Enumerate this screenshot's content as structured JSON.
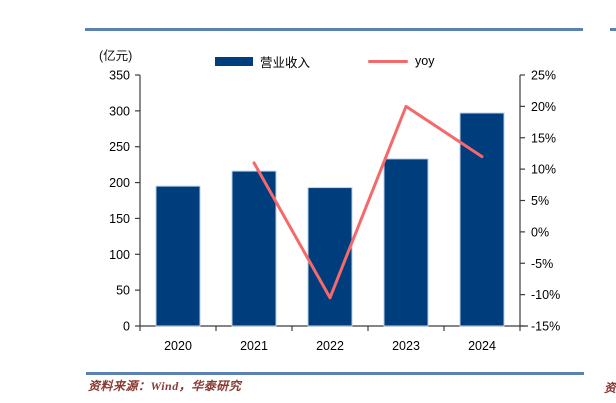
{
  "page": {
    "unit_label": "(亿元)",
    "source_text": "资料来源：Wind，华泰研究",
    "source_fragment": "资"
  },
  "legend": {
    "revenue_label": "营业收入",
    "yoy_label": "yoy"
  },
  "colors": {
    "bar": "#003D7C",
    "bar_stroke": "#BDD0E7",
    "line": "#F5696B",
    "rule": "#5B80B2",
    "source_text": "#8B3A32",
    "axis": "#3C3C3C",
    "tick_label": "#000000"
  },
  "chart_data": {
    "type": "bar",
    "title": "",
    "categories": [
      "2020",
      "2021",
      "2022",
      "2023",
      "2024"
    ],
    "series": [
      {
        "name": "营业收入",
        "type": "bar",
        "axis": "left",
        "unit": "亿元",
        "values": [
          195,
          216,
          193,
          233,
          297
        ]
      },
      {
        "name": "yoy",
        "type": "line",
        "axis": "right",
        "unit": "%",
        "values": [
          null,
          11,
          -10.5,
          20,
          12
        ]
      }
    ],
    "left_axis": {
      "min": 0,
      "max": 350,
      "step": 50,
      "labels": [
        "0",
        "50",
        "100",
        "150",
        "200",
        "250",
        "300",
        "350"
      ]
    },
    "right_axis": {
      "min": -15,
      "max": 25,
      "step": 5,
      "labels": [
        "-15%",
        "-10%",
        "-5%",
        "0%",
        "5%",
        "10%",
        "15%",
        "20%",
        "25%"
      ]
    },
    "xlabel": "",
    "ylabel_left": "(亿元)",
    "grid": false,
    "legend_position": "top"
  }
}
